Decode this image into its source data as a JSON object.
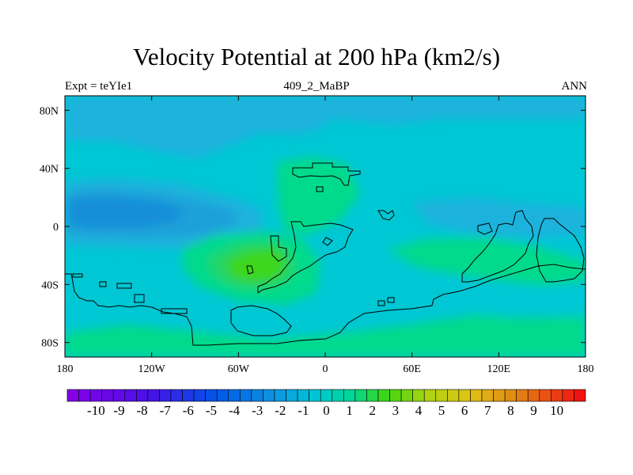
{
  "chart_data": {
    "type": "heatmap",
    "title": "Velocity Potential at 200 hPa (km2/s)",
    "subtitle_left": "Expt = teYIe1",
    "subtitle_center": "409_2_MaBP",
    "subtitle_right": "ANN",
    "x_ticks": [
      "180",
      "120W",
      "60W",
      "0",
      "60E",
      "120E",
      "180"
    ],
    "y_ticks": [
      "80N",
      "40N",
      "0",
      "40S",
      "80S"
    ],
    "xlim": [
      -180,
      180
    ],
    "ylim": [
      -90,
      90
    ],
    "colorbar": {
      "min": -11,
      "max": 11,
      "step": 0.5,
      "tick_labels": [
        "-10",
        "-9",
        "-8",
        "-7",
        "-6",
        "-5",
        "-4",
        "-3",
        "-2",
        "-1",
        "0",
        "1",
        "2",
        "3",
        "4",
        "5",
        "6",
        "7",
        "8",
        "9",
        "10"
      ]
    },
    "colors": {
      "background": "#00c7d4",
      "negative_light": "#1fb2dc",
      "negative_mid": "#1aa1d9",
      "negative_strong": "#168ed8",
      "positive_light": "#00da8c",
      "positive_mid": "#20d468",
      "positive_strong": "#3dd61e",
      "coastline": "#000000"
    }
  }
}
